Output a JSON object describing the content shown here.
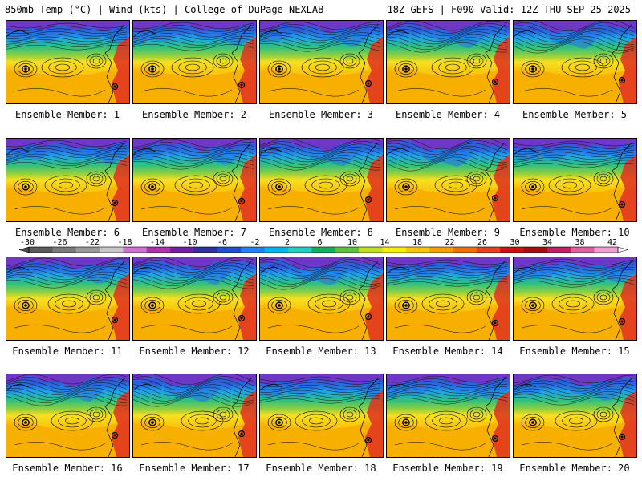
{
  "header": {
    "left": "850mb Temp (°C) | Wind (kts) | College of DuPage NEXLAB",
    "right": "18Z GEFS | F090 Valid: 12Z THU SEP 25 2025"
  },
  "caption_prefix": "Ensemble Member: ",
  "members": [
    {
      "label": "Ensemble Member: 1",
      "variant": 0
    },
    {
      "label": "Ensemble Member: 2",
      "variant": 1
    },
    {
      "label": "Ensemble Member: 3",
      "variant": 2
    },
    {
      "label": "Ensemble Member: 4",
      "variant": 3
    },
    {
      "label": "Ensemble Member: 5",
      "variant": 4
    },
    {
      "label": "Ensemble Member: 6",
      "variant": 1
    },
    {
      "label": "Ensemble Member: 7",
      "variant": 2
    },
    {
      "label": "Ensemble Member: 8",
      "variant": 3
    },
    {
      "label": "Ensemble Member: 9",
      "variant": 4
    },
    {
      "label": "Ensemble Member: 10",
      "variant": 0
    },
    {
      "label": "Ensemble Member: 11",
      "variant": 2
    },
    {
      "label": "Ensemble Member: 12",
      "variant": 3
    },
    {
      "label": "Ensemble Member: 13",
      "variant": 4
    },
    {
      "label": "Ensemble Member: 14",
      "variant": 0
    },
    {
      "label": "Ensemble Member: 15",
      "variant": 1
    },
    {
      "label": "Ensemble Member: 16",
      "variant": 3
    },
    {
      "label": "Ensemble Member: 17",
      "variant": 4
    },
    {
      "label": "Ensemble Member: 18",
      "variant": 0
    },
    {
      "label": "Ensemble Member: 19",
      "variant": 1
    },
    {
      "label": "Ensemble Member: 20",
      "variant": 2
    }
  ],
  "colorbar": {
    "ticks": [
      "-30",
      "-26",
      "-22",
      "-18",
      "-14",
      "-10",
      "-6",
      "-2",
      "2",
      "6",
      "10",
      "14",
      "18",
      "22",
      "26",
      "30",
      "34",
      "38",
      "42"
    ],
    "colors": [
      "#5a5a5a",
      "#7a7a7a",
      "#9a9a9a",
      "#c8c8c8",
      "#d070d0",
      "#b030b0",
      "#7020a0",
      "#3030a0",
      "#2050d0",
      "#2080ff",
      "#00b8f0",
      "#20d0c0",
      "#10b060",
      "#60c040",
      "#c0e020",
      "#f8f000",
      "#f8c800",
      "#f8a000",
      "#f07000",
      "#e84020",
      "#d01010",
      "#a01010",
      "#c02060",
      "#e060a0",
      "#f0a0d0"
    ]
  },
  "map_colors": {
    "cold": "#7a30c0",
    "cool": "#20a0f0",
    "mild": "#30c080",
    "warm_green": "#90d040",
    "yellow": "#f8e020",
    "orange": "#f8b000",
    "hot": "#e03020",
    "land": "#c04010"
  }
}
